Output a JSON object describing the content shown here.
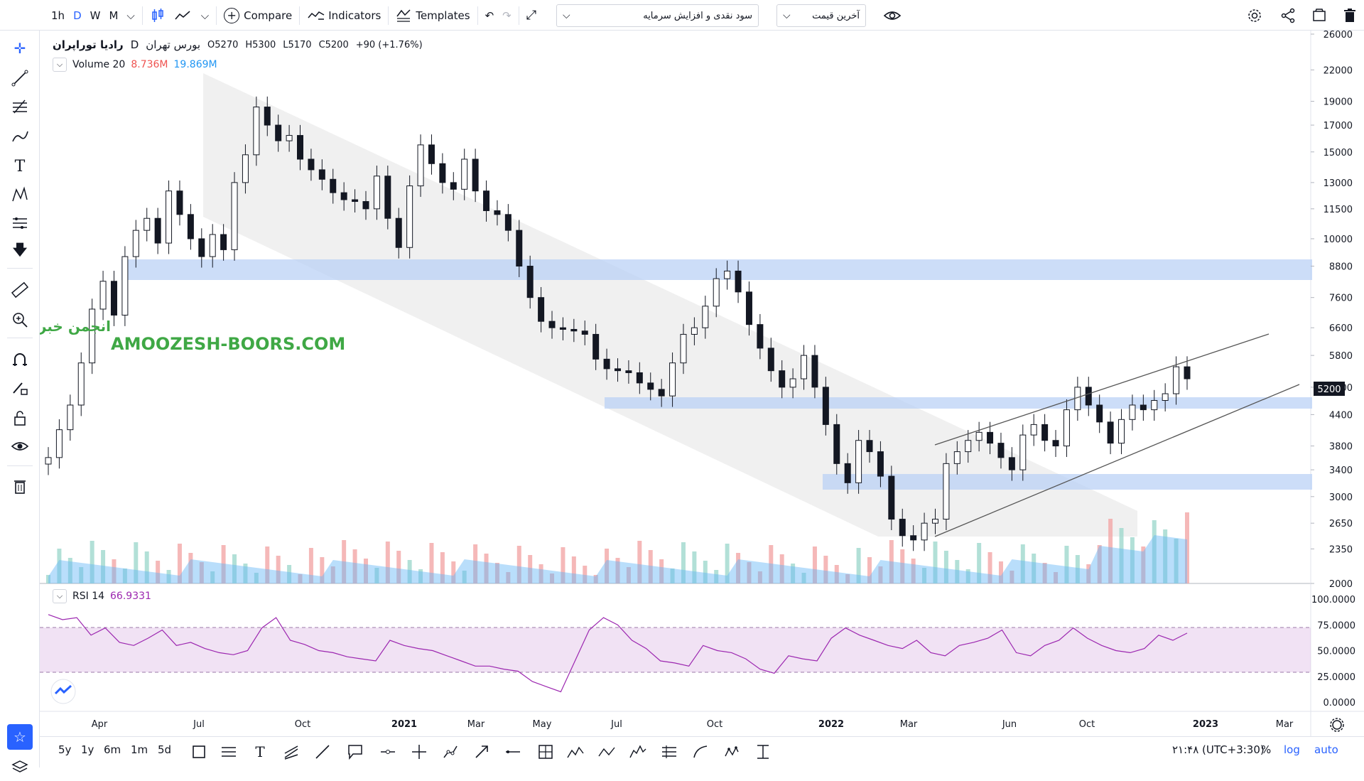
{
  "toolbar": {
    "intervals": [
      "1h",
      "D",
      "W",
      "M"
    ],
    "active_interval": "D",
    "compare_label": "Compare",
    "indicators_label": "Indicators",
    "templates_label": "Templates",
    "layout_select": "سود نقدی و افزایش سرمایه",
    "price_select": "آخرین قیمت"
  },
  "symbol": {
    "name": "راديا توراپران",
    "exchange": "بورس تهران",
    "interval": "D",
    "open": "O5270",
    "high": "H5300",
    "low": "L5170",
    "close": "C5200",
    "change": "+90 (+1.76%)"
  },
  "volume_legend": {
    "label": "Volume 20",
    "v1": "8.736M",
    "v2": "19.869M"
  },
  "rsi_legend": {
    "label": "RSI 14",
    "value": "66.9331"
  },
  "watermark": {
    "persian": "انجمن خبرگان بورس تهران",
    "latin": "AMOOZESH-BOORS.COM"
  },
  "price_axis": [
    "26000",
    "22000",
    "19000",
    "17000",
    "15000",
    "13000",
    "11500",
    "10000",
    "8800",
    "7600",
    "6600",
    "5800",
    "5000",
    "4400",
    "3800",
    "3400",
    "3000",
    "2650",
    "2350",
    "2000"
  ],
  "current_price": "5200",
  "rsi_axis": [
    "100.0000",
    "75.0000",
    "50.0000",
    "25.0000",
    "0.0000"
  ],
  "time_axis": [
    "Apr",
    "Jul",
    "Oct",
    "2021",
    "Mar",
    "May",
    "Jul",
    "Oct",
    "2022",
    "Mar",
    "Jun",
    "Oct",
    "2023",
    "Mar"
  ],
  "ranges": [
    "5y",
    "1y",
    "6m",
    "1m",
    "5d"
  ],
  "clock": "۲۱:۴۸ (UTC+3:30)",
  "scale_buttons": [
    "%",
    "log",
    "auto"
  ],
  "colors": {
    "accent": "#2962ff",
    "up": "#26a69a",
    "down": "#ef5350",
    "zone": "#bbd2f5",
    "channel": "#dcdcdc",
    "rsi": "#9c27b0"
  },
  "chart_data": {
    "type": "candlestick",
    "close_series": [
      3600,
      4100,
      4600,
      5600,
      7200,
      8200,
      7000,
      9200,
      10400,
      11000,
      9800,
      12500,
      11200,
      10000,
      9200,
      10200,
      9500,
      13000,
      14800,
      18500,
      17000,
      15800,
      16200,
      14500,
      13800,
      13200,
      12400,
      12000,
      11900,
      11500,
      13400,
      11000,
      9600,
      12800,
      15500,
      14200,
      13000,
      12600,
      14500,
      12500,
      11400,
      11200,
      10400,
      8800,
      7600,
      6800,
      6600,
      6550,
      6500,
      6400,
      5700,
      5450,
      5400,
      5350,
      5100,
      4950,
      4800,
      5600,
      6400,
      6600,
      7300,
      8300,
      8600,
      7800,
      6700,
      6000,
      5400,
      5000,
      5200,
      5800,
      5000,
      4200,
      3500,
      3200,
      3900,
      3700,
      3300,
      2700,
      2500,
      2450,
      2650,
      2700,
      3500,
      3700,
      3900,
      4050,
      3850,
      3600,
      3400,
      4000,
      4200,
      3900,
      3800,
      4500,
      5000,
      4600,
      4250,
      3850,
      4300,
      4600,
      4500,
      4700,
      4850,
      5500,
      5200
    ],
    "rsi_series": [
      85,
      80,
      82,
      65,
      72,
      58,
      55,
      62,
      70,
      55,
      58,
      52,
      48,
      46,
      50,
      72,
      82,
      60,
      56,
      50,
      48,
      44,
      42,
      40,
      60,
      55,
      52,
      50,
      45,
      40,
      35,
      35,
      32,
      30,
      20,
      15,
      10,
      40,
      70,
      82,
      75,
      60,
      52,
      40,
      38,
      35,
      55,
      50,
      48,
      42,
      32,
      28,
      45,
      42,
      40,
      62,
      72,
      65,
      60,
      55,
      52,
      60,
      48,
      45,
      55,
      58,
      62,
      70,
      48,
      45,
      55,
      60,
      72,
      62,
      55,
      50,
      48,
      52,
      65,
      60,
      67
    ]
  }
}
